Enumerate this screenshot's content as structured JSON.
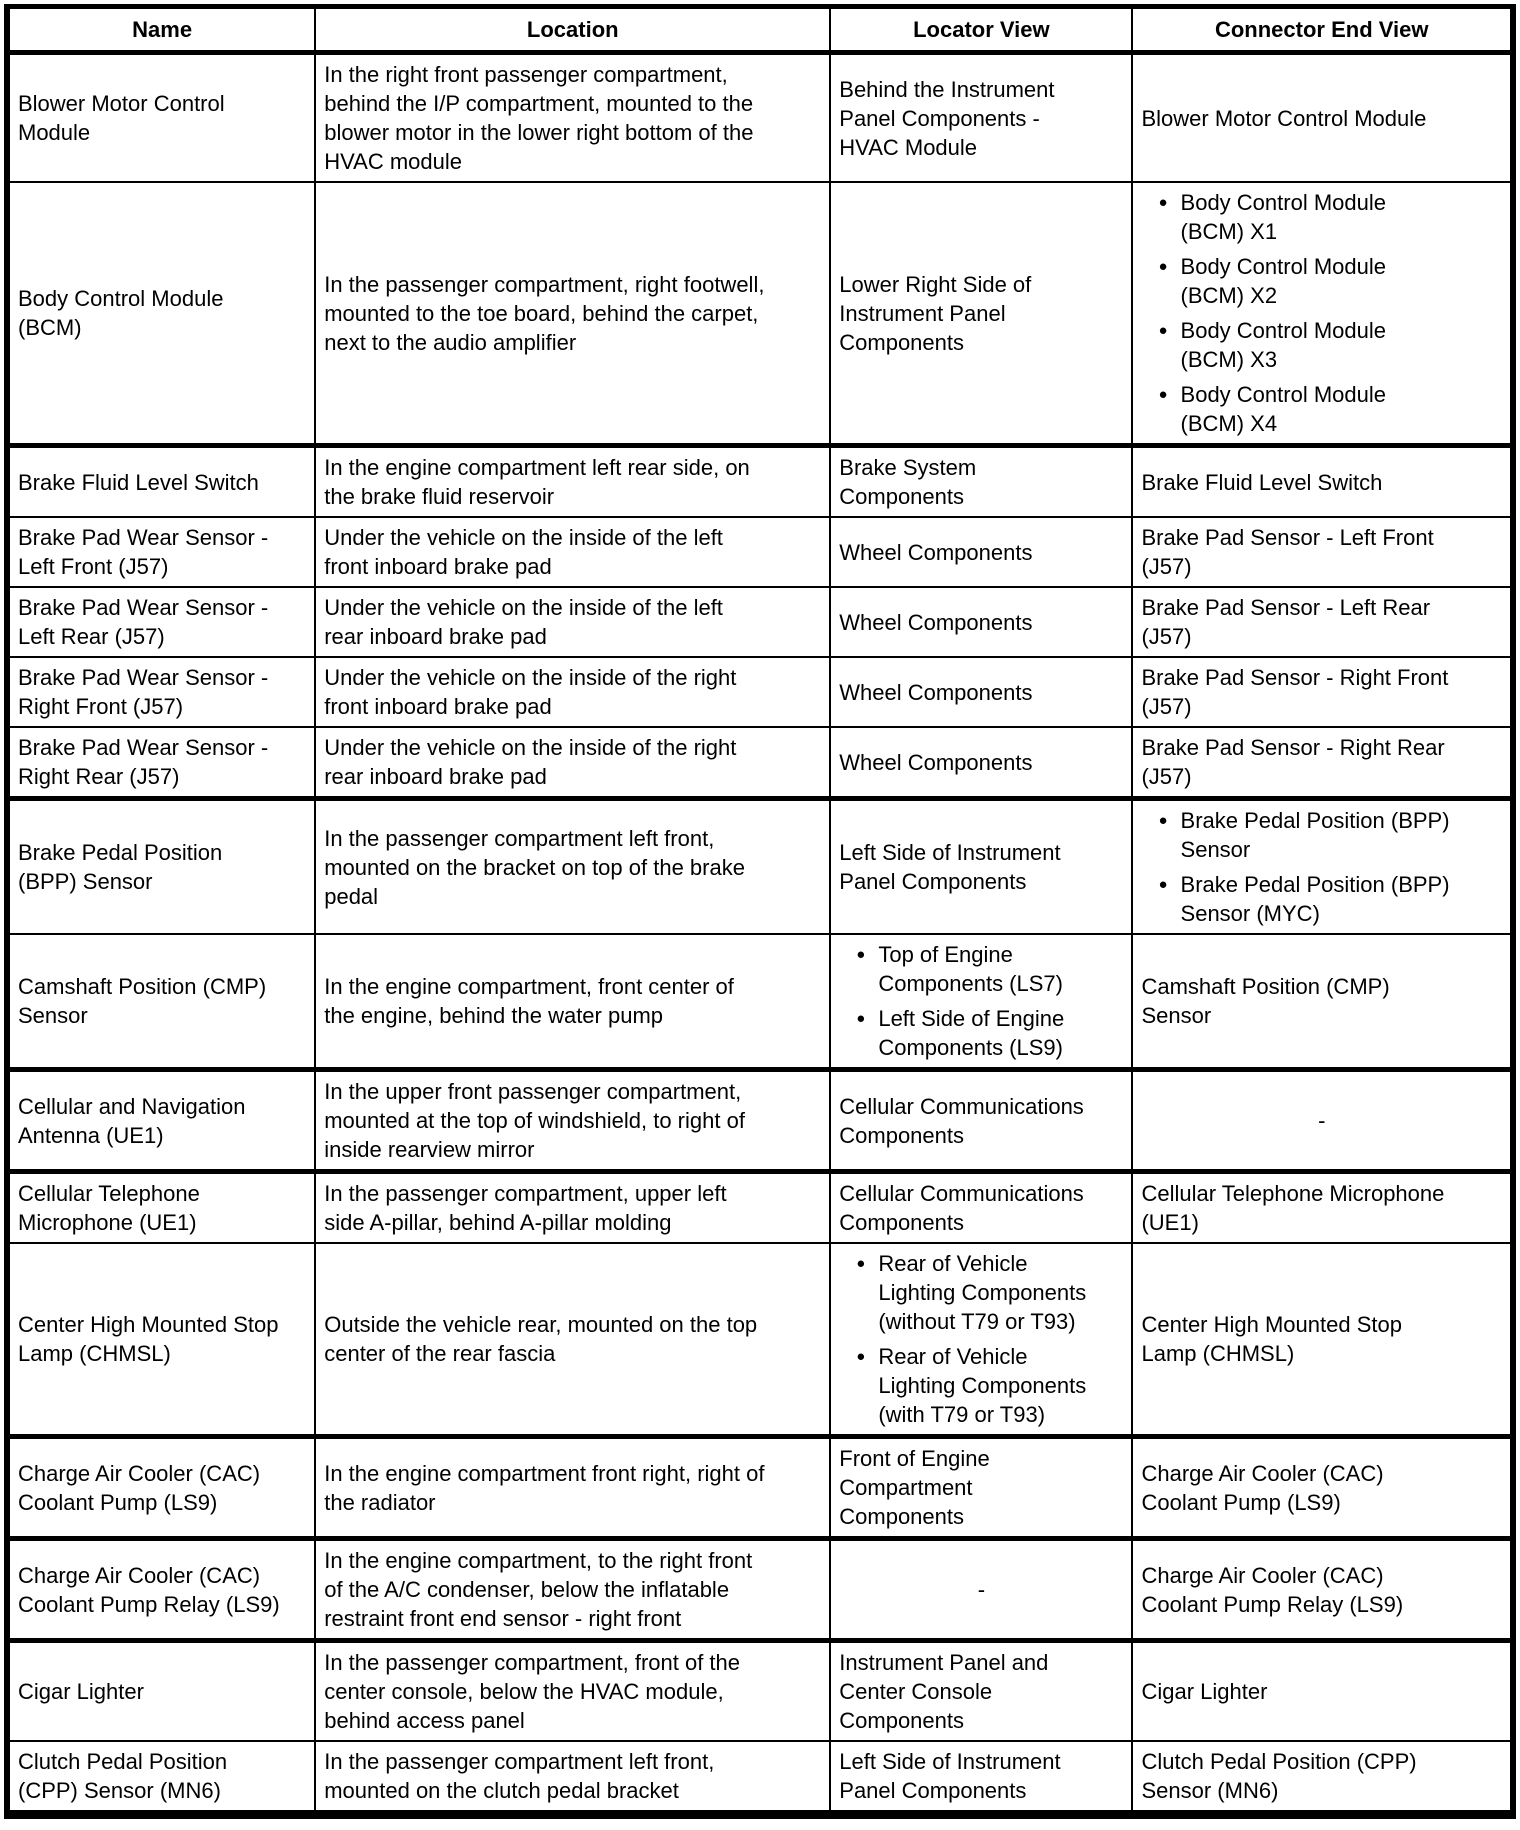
{
  "table": {
    "columns": [
      "Name",
      "Location",
      "Locator View",
      "Connector End View"
    ],
    "rows": [
      {
        "thick_top": false,
        "name": "Blower Motor Control\nModule",
        "location": "In the right front passenger compartment,\nbehind the I/P compartment, mounted to the\nblower motor in the lower right bottom of the\nHVAC module",
        "locator": "Behind the Instrument\nPanel Components -\nHVAC Module",
        "connector": "Blower Motor Control Module"
      },
      {
        "thick_top": false,
        "name": "Body Control Module\n(BCM)",
        "location": "In the passenger compartment, right footwell,\nmounted to the toe board, behind the carpet,\nnext to the audio amplifier",
        "locator": "Lower Right Side of\nInstrument Panel\nComponents",
        "connector": [
          "Body Control Module\n(BCM) X1",
          "Body Control Module\n(BCM) X2",
          "Body Control Module\n(BCM) X3",
          "Body Control Module\n(BCM) X4"
        ]
      },
      {
        "thick_top": true,
        "name": "Brake Fluid Level Switch",
        "location": "In the engine compartment left rear side, on\nthe brake fluid reservoir",
        "locator": "Brake System\nComponents",
        "connector": "Brake Fluid Level Switch"
      },
      {
        "thick_top": false,
        "name": "Brake Pad Wear Sensor -\nLeft Front (J57)",
        "location": "Under the vehicle on the inside of the left\nfront inboard brake pad",
        "locator": "Wheel Components",
        "connector": "Brake Pad Sensor - Left Front\n(J57)"
      },
      {
        "thick_top": false,
        "name": "Brake Pad Wear Sensor -\nLeft Rear (J57)",
        "location": "Under the vehicle on the inside of the left\nrear inboard brake pad",
        "locator": "Wheel Components",
        "connector": "Brake Pad Sensor - Left Rear\n(J57)"
      },
      {
        "thick_top": false,
        "name": "Brake Pad Wear Sensor -\nRight Front (J57)",
        "location": "Under the vehicle on the inside of the right\nfront inboard brake pad",
        "locator": "Wheel Components",
        "connector": "Brake Pad Sensor - Right Front\n(J57)"
      },
      {
        "thick_top": false,
        "name": "Brake Pad Wear Sensor -\nRight Rear (J57)",
        "location": "Under the vehicle on the inside of the right\nrear inboard brake pad",
        "locator": "Wheel Components",
        "connector": "Brake Pad Sensor - Right Rear\n(J57)"
      },
      {
        "thick_top": true,
        "name": "Brake Pedal Position\n(BPP) Sensor",
        "location": "In the passenger compartment left front,\nmounted on the bracket on top of the brake\npedal",
        "locator": "Left Side of Instrument\nPanel Components",
        "connector": [
          "Brake Pedal Position (BPP)\nSensor",
          "Brake Pedal Position (BPP)\nSensor (MYC)"
        ]
      },
      {
        "thick_top": false,
        "name": "Camshaft Position (CMP)\nSensor",
        "location": "In the engine compartment, front center of\nthe engine, behind the water pump",
        "locator": [
          "Top of Engine\nComponents (LS7)",
          "Left Side of Engine\nComponents (LS9)"
        ],
        "connector": "Camshaft Position (CMP)\nSensor"
      },
      {
        "thick_top": true,
        "name": "Cellular and Navigation\nAntenna (UE1)",
        "location": "In the upper front passenger compartment,\nmounted at the top of windshield, to right of\ninside rearview mirror",
        "locator": "Cellular Communications\nComponents",
        "connector": "-"
      },
      {
        "thick_top": true,
        "name": "Cellular Telephone\nMicrophone (UE1)",
        "location": "In the passenger compartment, upper left\nside A-pillar, behind A-pillar molding",
        "locator": "Cellular Communications\nComponents",
        "connector": "Cellular Telephone Microphone\n(UE1)"
      },
      {
        "thick_top": false,
        "name": "Center High Mounted Stop\nLamp (CHMSL)",
        "location": "Outside the vehicle rear, mounted on the top\ncenter of the rear fascia",
        "locator": [
          "Rear of Vehicle\nLighting Components\n(without T79 or T93)",
          "Rear of Vehicle\nLighting Components\n(with T79 or T93)"
        ],
        "connector": "Center High Mounted Stop\nLamp (CHMSL)"
      },
      {
        "thick_top": true,
        "name": "Charge Air Cooler (CAC)\nCoolant Pump (LS9)",
        "location": "In the engine compartment front right, right of\nthe radiator",
        "locator": "Front of Engine\nCompartment\nComponents",
        "connector": "Charge Air Cooler (CAC)\nCoolant Pump (LS9)"
      },
      {
        "thick_top": true,
        "name": "Charge Air Cooler (CAC)\nCoolant Pump Relay (LS9)",
        "location": "In the engine compartment, to the right front\nof the A/C condenser, below the inflatable\nrestraint front end sensor - right front",
        "locator": "-",
        "connector": "Charge Air Cooler (CAC)\nCoolant Pump Relay (LS9)"
      },
      {
        "thick_top": true,
        "name": "Cigar Lighter",
        "location": "In the passenger compartment, front of the\ncenter console, below the HVAC module,\nbehind access panel",
        "locator": "Instrument Panel and\nCenter Console\nComponents",
        "connector": "Cigar Lighter"
      },
      {
        "thick_top": false,
        "name": "Clutch Pedal Position\n(CPP) Sensor (MN6)",
        "location": "In the passenger compartment left front,\nmounted on the clutch pedal bracket",
        "locator": "Left Side of Instrument\nPanel Components",
        "connector": "Clutch Pedal Position (CPP)\nSensor (MN6)"
      }
    ]
  }
}
